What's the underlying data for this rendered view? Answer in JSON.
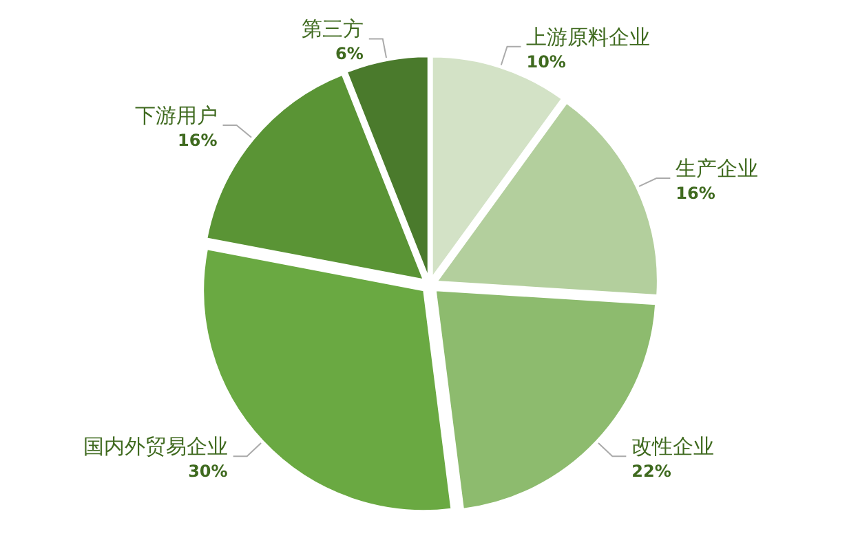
{
  "chart_data": {
    "type": "pie",
    "categories": [
      "上游原料企业",
      "生产企业",
      "改性企业",
      "国内外贸易企业",
      "下游用户",
      "第三方"
    ],
    "values": [
      10,
      16,
      22,
      30,
      16,
      6
    ],
    "colors": [
      "#d3e2c6",
      "#b3cf9d",
      "#8dbb6e",
      "#6aa942",
      "#5a9435",
      "#4a7a2c"
    ],
    "value_labels": [
      "10%",
      "16%",
      "22%",
      "30%",
      "16%",
      "6%"
    ]
  }
}
